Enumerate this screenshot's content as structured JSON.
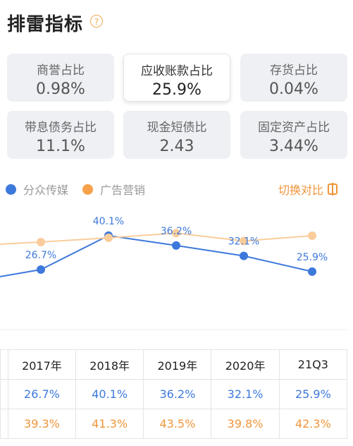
{
  "title": "排雷指标",
  "help_icon": "?",
  "cards": [
    {
      "label": "商誉占比",
      "value": "0.98%"
    },
    {
      "label": "应收账款占比",
      "value": "25.9%"
    },
    {
      "label": "存货占比",
      "value": "0.04%"
    },
    {
      "label": "带息债务占比",
      "value": "11.1%"
    },
    {
      "label": "现金短债比",
      "value": "2.43"
    },
    {
      "label": "固定资产占比",
      "value": "3.44%"
    }
  ],
  "legend": [
    {
      "name": "分众传媒",
      "color": "#3d79dc"
    },
    {
      "name": "广告营销",
      "color": "#f7a24a"
    }
  ],
  "compare_label": "切换对比",
  "chart_data": {
    "type": "line",
    "categories": [
      "",
      "2017年",
      "2018年",
      "2019年",
      "2020年",
      "21Q3"
    ],
    "series": [
      {
        "name": "分众传媒",
        "color": "#3d79dc",
        "values": [
          null,
          26.7,
          40.1,
          36.2,
          32.1,
          25.9
        ]
      },
      {
        "name": "广告营销",
        "color": "#f9cd9b",
        "values": [
          null,
          39.3,
          41.3,
          43.5,
          39.8,
          42.3
        ]
      }
    ],
    "data_labels": [
      "26.7%",
      "40.1%",
      "36.2%",
      "32.1%",
      "25.9%"
    ],
    "legend": "top-left"
  },
  "table": {
    "headers": [
      "",
      "2017年",
      "2018年",
      "2019年",
      "2020年",
      "21Q3"
    ],
    "rows": [
      {
        "series": "分众传媒",
        "values": [
          "",
          "26.7%",
          "40.1%",
          "36.2%",
          "32.1%",
          "25.9%"
        ]
      },
      {
        "series": "广告营销",
        "values": [
          "",
          "39.3%",
          "41.3%",
          "43.5%",
          "39.8%",
          "42.3%"
        ]
      }
    ]
  }
}
